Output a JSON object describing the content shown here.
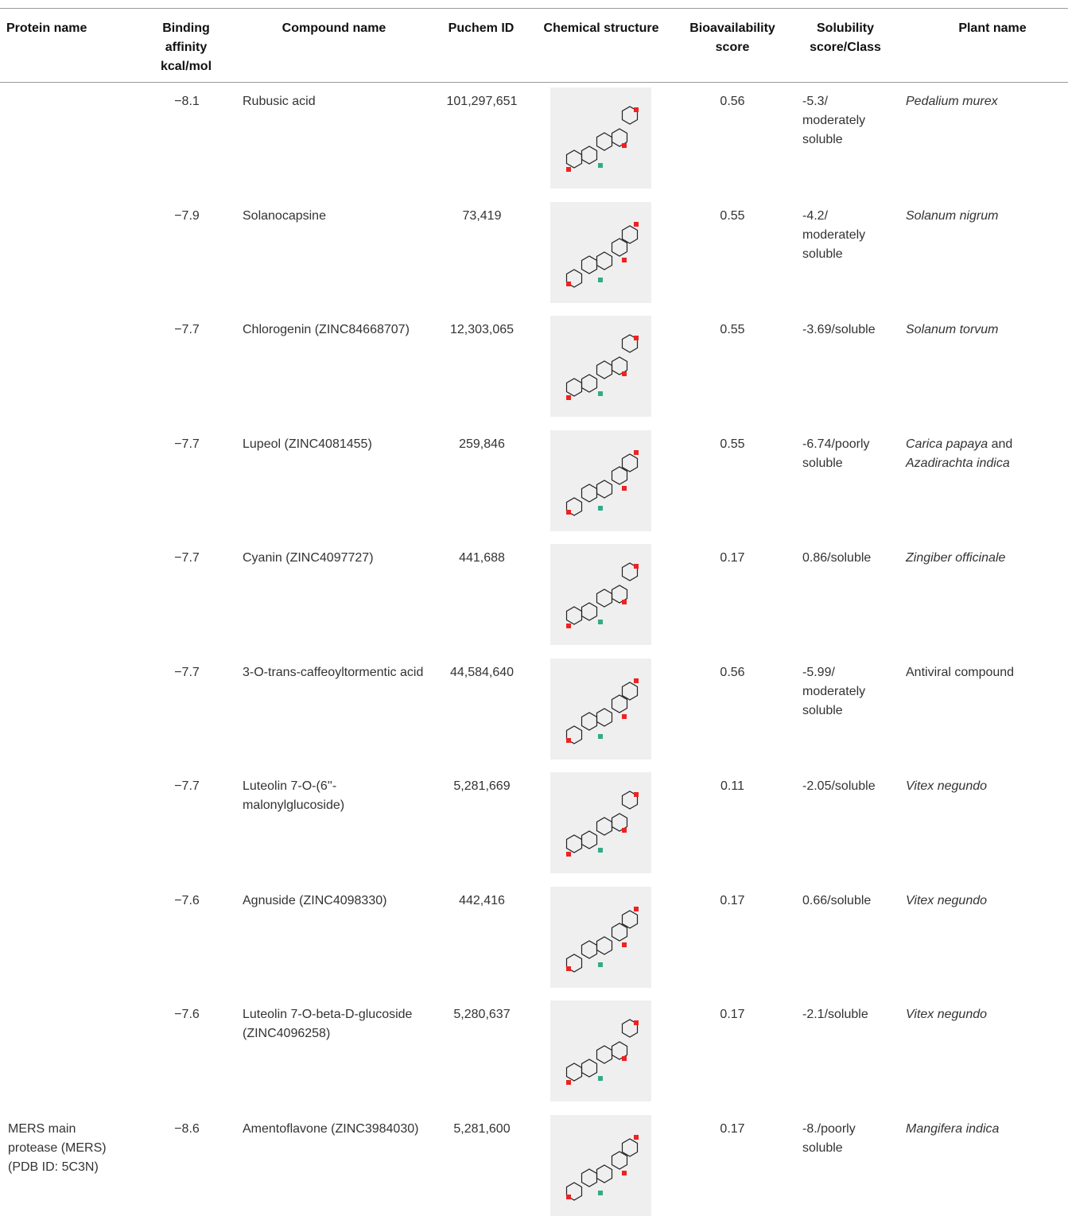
{
  "table": {
    "header": [
      "Protein name",
      "Binding affinity kcal/mol",
      "Compound name",
      "Puchem ID",
      "Chemical structure",
      "Bioavailability score",
      "Solubility score/Class",
      "Plant name"
    ],
    "rows": [
      {
        "binding": "−8.1",
        "compound": "Rubusic acid",
        "pubchem": "101,297,651",
        "bioavailability": "0.56",
        "solubility": "-5.3/ moderately soluble",
        "plant": [
          {
            "text": "Pedalium murex",
            "italic": true
          }
        ]
      },
      {
        "binding": "−7.9",
        "compound": "Solanocapsine",
        "pubchem": "73,419",
        "bioavailability": "0.55",
        "solubility": "-4.2/ moderately soluble",
        "plant": [
          {
            "text": "Solanum nigrum",
            "italic": true
          }
        ]
      },
      {
        "binding": "−7.7",
        "compound": "Chlorogenin (ZINC84668707)",
        "pubchem": "12,303,065",
        "bioavailability": "0.55",
        "solubility": "-3.69/soluble",
        "plant": [
          {
            "text": "Solanum torvum",
            "italic": true
          }
        ]
      },
      {
        "binding": "−7.7",
        "compound": "Lupeol (ZINC4081455)",
        "pubchem": "259,846",
        "bioavailability": "0.55",
        "solubility": "-6.74/poorly soluble",
        "plant": [
          {
            "text": "Carica papaya",
            "italic": true
          },
          {
            "text": " and ",
            "italic": false
          },
          {
            "text": "Azadirachta indica",
            "italic": true
          }
        ]
      },
      {
        "binding": "−7.7",
        "compound": "Cyanin (ZINC4097727)",
        "pubchem": "441,688",
        "bioavailability": "0.17",
        "solubility": "0.86/soluble",
        "plant": [
          {
            "text": "Zingiber officinale",
            "italic": true
          }
        ]
      },
      {
        "binding": "−7.7",
        "compound": "3-O-trans-caffeoyltormentic acid",
        "pubchem": "44,584,640",
        "bioavailability": "0.56",
        "solubility": "-5.99/ moderately soluble",
        "plant": [
          {
            "text": "Antiviral compound",
            "italic": false
          }
        ]
      },
      {
        "binding": "−7.7",
        "compound": "Luteolin 7-O-(6''-malonylglucoside)",
        "pubchem": "5,281,669",
        "bioavailability": "0.11",
        "solubility": "-2.05/soluble",
        "plant": [
          {
            "text": "Vitex negundo",
            "italic": true
          }
        ]
      },
      {
        "binding": "−7.6",
        "compound": "Agnuside (ZINC4098330)",
        "pubchem": "442,416",
        "bioavailability": "0.17",
        "solubility": "0.66/soluble",
        "plant": [
          {
            "text": "Vitex negundo",
            "italic": true
          }
        ]
      },
      {
        "binding": "−7.6",
        "compound": "Luteolin 7-O-beta-D-glucoside (ZINC4096258)",
        "pubchem": "5,280,637",
        "bioavailability": "0.17",
        "solubility": "-2.1/soluble",
        "plant": [
          {
            "text": "Vitex negundo",
            "italic": true
          }
        ]
      },
      {
        "protein": "MERS main protease (MERS) (PDB ID: 5C3N)",
        "binding": "−8.6",
        "compound": "Amentoflavone (ZINC3984030)",
        "pubchem": "5,281,600",
        "bioavailability": "0.17",
        "solubility": "-8./poorly soluble",
        "plant": [
          {
            "text": "Mangifera indica",
            "italic": true
          }
        ]
      }
    ]
  }
}
